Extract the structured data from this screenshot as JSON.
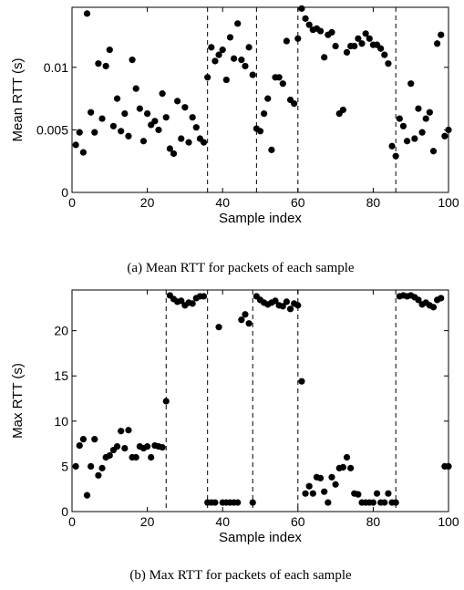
{
  "chart_data": [
    {
      "type": "scatter",
      "xlabel": "Sample index",
      "ylabel": "Mean RTT (s)",
      "caption": "(a) Mean RTT for packets of each sample",
      "xlim": [
        0,
        100
      ],
      "ylim": [
        0,
        0.0148
      ],
      "xticks": [
        "0",
        "20",
        "40",
        "60",
        "80",
        "100"
      ],
      "yticks": [
        "0",
        "0.005",
        "0.01"
      ],
      "grid": false,
      "dashed_lines_x": [
        36,
        49,
        60,
        86,
        100
      ],
      "x": [
        1,
        2,
        3,
        4,
        5,
        6,
        7,
        8,
        9,
        10,
        11,
        12,
        13,
        14,
        15,
        16,
        17,
        18,
        19,
        20,
        21,
        22,
        23,
        24,
        25,
        26,
        27,
        28,
        29,
        30,
        31,
        32,
        33,
        34,
        35,
        36,
        37,
        38,
        39,
        40,
        41,
        42,
        43,
        44,
        45,
        46,
        47,
        48,
        49,
        50,
        51,
        52,
        53,
        54,
        55,
        56,
        57,
        58,
        59,
        60,
        61,
        62,
        63,
        64,
        65,
        66,
        67,
        68,
        69,
        70,
        71,
        72,
        73,
        74,
        75,
        76,
        77,
        78,
        79,
        80,
        81,
        82,
        83,
        84,
        85,
        86,
        87,
        88,
        89,
        90,
        91,
        92,
        93,
        94,
        95,
        96,
        97,
        98,
        99,
        100
      ],
      "y": [
        0.0038,
        0.0048,
        0.0032,
        0.0143,
        0.0064,
        0.0048,
        0.0103,
        0.0059,
        0.0101,
        0.0114,
        0.0053,
        0.0075,
        0.0049,
        0.0063,
        0.0045,
        0.0106,
        0.0083,
        0.0067,
        0.0041,
        0.0063,
        0.0054,
        0.0057,
        0.005,
        0.0079,
        0.006,
        0.0035,
        0.0031,
        0.0073,
        0.0043,
        0.0068,
        0.004,
        0.006,
        0.0052,
        0.0043,
        0.004,
        0.0092,
        0.0116,
        0.0105,
        0.011,
        0.0114,
        0.009,
        0.0124,
        0.0107,
        0.0135,
        0.0106,
        0.0101,
        0.0116,
        0.0094,
        0.0051,
        0.0049,
        0.0063,
        0.0075,
        0.0034,
        0.0092,
        0.0092,
        0.0087,
        0.0121,
        0.0074,
        0.0071,
        0.0123,
        0.0147,
        0.0139,
        0.0134,
        0.013,
        0.0131,
        0.0129,
        0.0108,
        0.0126,
        0.0128,
        0.0117,
        0.0063,
        0.0066,
        0.0112,
        0.0117,
        0.0117,
        0.0123,
        0.0119,
        0.0127,
        0.0123,
        0.0118,
        0.0118,
        0.0115,
        0.011,
        0.0103,
        0.0037,
        0.0029,
        0.0059,
        0.0053,
        0.0041,
        0.0087,
        0.0043,
        0.0067,
        0.0048,
        0.0059,
        0.0064,
        0.0033,
        0.0119,
        0.0126,
        0.0045,
        0.005
      ]
    },
    {
      "type": "scatter",
      "xlabel": "Sample index",
      "ylabel": "Max RTT (s)",
      "caption": "(b) Max RTT for packets of each sample",
      "xlim": [
        0,
        100
      ],
      "ylim": [
        0,
        24.5
      ],
      "xticks": [
        "0",
        "20",
        "40",
        "60",
        "80",
        "100"
      ],
      "yticks": [
        "0",
        "5",
        "10",
        "15",
        "20"
      ],
      "grid": false,
      "dashed_lines_x": [
        25,
        36,
        48,
        60,
        86,
        100
      ],
      "x": [
        1,
        2,
        3,
        4,
        5,
        6,
        7,
        8,
        9,
        10,
        11,
        12,
        13,
        14,
        15,
        16,
        17,
        18,
        19,
        20,
        21,
        22,
        23,
        24,
        25,
        26,
        27,
        28,
        29,
        30,
        31,
        32,
        33,
        34,
        35,
        36,
        37,
        38,
        39,
        40,
        41,
        42,
        43,
        44,
        45,
        46,
        47,
        48,
        49,
        50,
        51,
        52,
        53,
        54,
        55,
        56,
        57,
        58,
        59,
        60,
        61,
        62,
        63,
        64,
        65,
        66,
        67,
        68,
        69,
        70,
        71,
        72,
        73,
        74,
        75,
        76,
        77,
        78,
        79,
        80,
        81,
        82,
        83,
        84,
        85,
        86,
        87,
        88,
        89,
        90,
        91,
        92,
        93,
        94,
        95,
        96,
        97,
        98,
        99,
        100
      ],
      "y": [
        5.0,
        7.3,
        8.0,
        1.8,
        5.0,
        8.0,
        4.0,
        4.8,
        6.0,
        6.2,
        6.8,
        7.2,
        8.9,
        7.0,
        9.0,
        6.0,
        6.0,
        7.2,
        7.0,
        7.2,
        6.0,
        7.3,
        7.2,
        7.1,
        12.2,
        23.9,
        23.5,
        23.2,
        23.3,
        22.8,
        23.1,
        23.0,
        23.6,
        23.8,
        23.8,
        1.0,
        1.0,
        1.0,
        20.4,
        1.0,
        1.0,
        1.0,
        1.0,
        1.0,
        21.2,
        21.8,
        20.8,
        1.0,
        23.8,
        23.4,
        23.1,
        22.9,
        23.1,
        23.3,
        22.8,
        22.7,
        23.2,
        22.4,
        23.0,
        22.8,
        14.4,
        2.0,
        2.8,
        2.0,
        3.8,
        3.7,
        2.2,
        1.0,
        3.8,
        3.0,
        4.8,
        4.9,
        6.0,
        4.8,
        2.0,
        1.9,
        1.0,
        1.0,
        1.0,
        1.0,
        2.0,
        1.0,
        1.0,
        2.0,
        1.0,
        1.0,
        23.8,
        23.9,
        23.8,
        23.9,
        23.7,
        23.4,
        22.9,
        23.1,
        22.8,
        22.6,
        23.4,
        23.6,
        5.0,
        5.0
      ]
    }
  ]
}
